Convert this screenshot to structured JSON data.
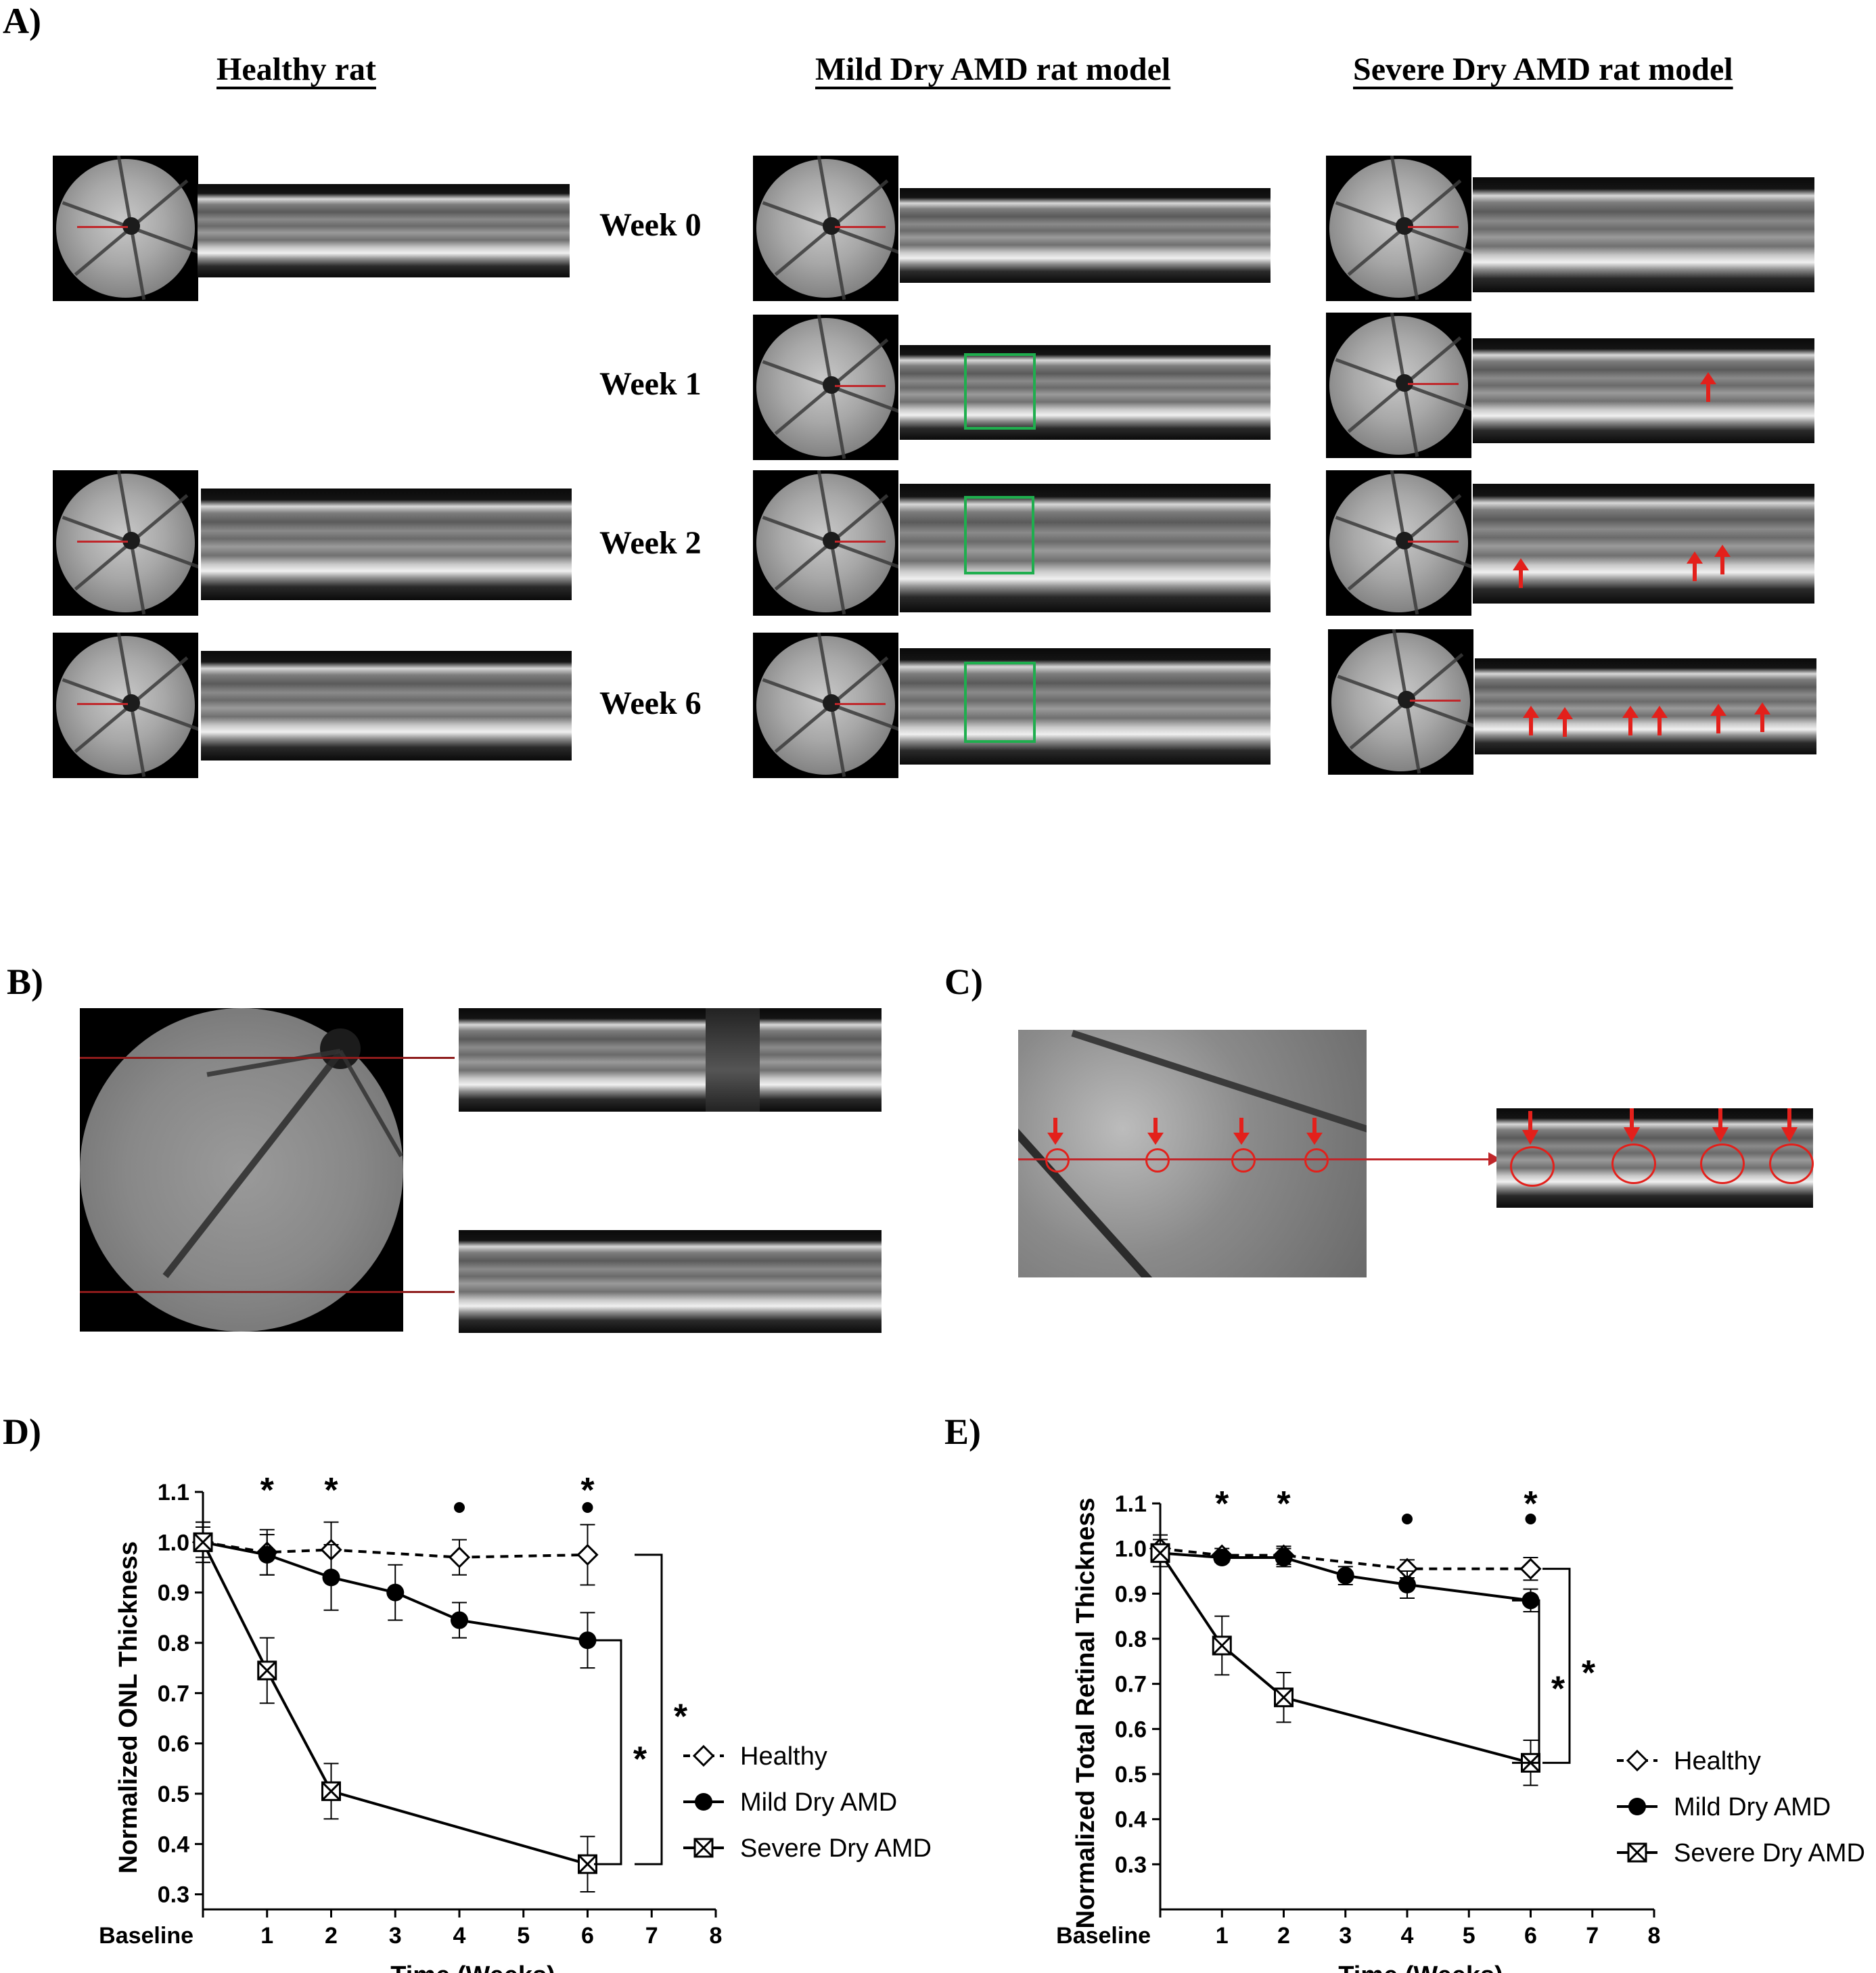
{
  "panels": {
    "A": "A)",
    "B": "B)",
    "C": "C)",
    "D": "D)",
    "E": "E)"
  },
  "panelA": {
    "columns": [
      "Healthy rat",
      "Mild Dry AMD rat model",
      "Severe Dry AMD rat model"
    ],
    "weeks": [
      "Week 0",
      "Week 1",
      "Week 2",
      "Week 6"
    ]
  },
  "chart_data": [
    {
      "type": "line",
      "panel": "D",
      "xlabel": "Time (Weeks)",
      "ylabel": "Normalized ONL Thickness",
      "x_ticks": [
        "Baseline",
        "1",
        "2",
        "3",
        "4",
        "5",
        "6",
        "7",
        "8"
      ],
      "y_ticks": [
        "0.3",
        "0.4",
        "0.5",
        "0.6",
        "0.7",
        "0.8",
        "0.9",
        "1.0",
        "1.1"
      ],
      "xlim": [
        0,
        8
      ],
      "ylim": [
        0.27,
        1.1
      ],
      "legend_position": "bottom-right",
      "series": [
        {
          "name": "Healthy",
          "style": "dashed",
          "marker": "diamond-open",
          "x": [
            0,
            1,
            2,
            4,
            6
          ],
          "y": [
            1.0,
            0.98,
            0.985,
            0.97,
            0.975
          ],
          "err": [
            0.04,
            0.045,
            0.055,
            0.035,
            0.06
          ]
        },
        {
          "name": "Mild Dry AMD",
          "style": "solid",
          "marker": "circle-filled",
          "x": [
            0,
            1,
            2,
            3,
            4,
            6
          ],
          "y": [
            1.0,
            0.975,
            0.93,
            0.9,
            0.845,
            0.805
          ],
          "err": [
            0.03,
            0.04,
            0.065,
            0.055,
            0.035,
            0.055
          ]
        },
        {
          "name": "Severe Dry AMD",
          "style": "solid",
          "marker": "square-x",
          "x": [
            0,
            1,
            2,
            6
          ],
          "y": [
            1.0,
            0.745,
            0.505,
            0.36
          ],
          "err": [
            0.04,
            0.065,
            0.055,
            0.055
          ]
        }
      ],
      "significance": {
        "star_weeks": [
          1,
          2,
          6
        ],
        "dot_weeks": [
          4,
          6
        ],
        "bracket_labels": [
          "*",
          "*"
        ]
      }
    },
    {
      "type": "line",
      "panel": "E",
      "xlabel": "Time (Weeks)",
      "ylabel": "Normalized Total Retinal Thickness",
      "x_ticks": [
        "Baseline",
        "1",
        "2",
        "3",
        "4",
        "5",
        "6",
        "7",
        "8"
      ],
      "y_ticks": [
        "0.3",
        "0.4",
        "0.5",
        "0.6",
        "0.7",
        "0.8",
        "0.9",
        "1.0",
        "1.1"
      ],
      "xlim": [
        0,
        8
      ],
      "ylim": [
        0.2,
        1.1
      ],
      "legend_position": "bottom-right",
      "series": [
        {
          "name": "Healthy",
          "style": "dashed",
          "marker": "diamond-open",
          "x": [
            0,
            1,
            2,
            4,
            6
          ],
          "y": [
            1.0,
            0.985,
            0.985,
            0.955,
            0.955
          ],
          "err": [
            0.03,
            0.015,
            0.02,
            0.02,
            0.025
          ]
        },
        {
          "name": "Mild Dry AMD",
          "style": "solid",
          "marker": "circle-filled",
          "x": [
            0,
            1,
            2,
            3,
            4,
            6
          ],
          "y": [
            0.99,
            0.98,
            0.98,
            0.94,
            0.92,
            0.885
          ],
          "err": [
            0.02,
            0.01,
            0.02,
            0.02,
            0.03,
            0.025
          ]
        },
        {
          "name": "Severe Dry AMD",
          "style": "solid",
          "marker": "square-x",
          "x": [
            0,
            1,
            2,
            6
          ],
          "y": [
            0.99,
            0.785,
            0.67,
            0.525
          ],
          "err": [
            0.03,
            0.065,
            0.055,
            0.05
          ]
        }
      ],
      "significance": {
        "star_weeks": [
          1,
          2,
          6
        ],
        "dot_weeks": [
          4,
          6
        ],
        "bracket_labels": [
          "*",
          "*"
        ]
      }
    }
  ]
}
